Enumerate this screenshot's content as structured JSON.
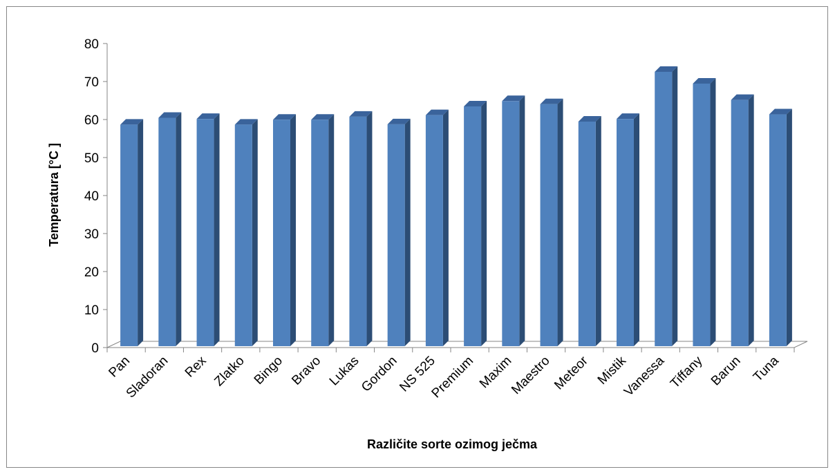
{
  "chart_data": {
    "type": "bar",
    "style": "3d-column",
    "title": "",
    "xlabel": "Različite sorte ozimog ječma",
    "ylabel": "Temperatura [°C ]",
    "ylim": [
      0,
      80
    ],
    "yticks": [
      0,
      10,
      20,
      30,
      40,
      50,
      60,
      70,
      80
    ],
    "grid": false,
    "legend": "none",
    "bar_color": "#4f81bd",
    "categories": [
      "Pan",
      "Sladoran",
      "Rex",
      "Zlatko",
      "Bingo",
      "Bravo",
      "Lukas",
      "Gordon",
      "NS 525",
      "Premium",
      "Maxim",
      "Maestro",
      "Meteor",
      "Mistik",
      "Vanessa",
      "Tiffany",
      "Barun",
      "Tuna"
    ],
    "values": [
      59.2,
      61.0,
      60.7,
      59.2,
      60.5,
      60.5,
      61.3,
      59.3,
      61.7,
      64.0,
      65.4,
      64.6,
      60.0,
      60.7,
      73.1,
      70.0,
      65.7,
      61.9
    ]
  }
}
